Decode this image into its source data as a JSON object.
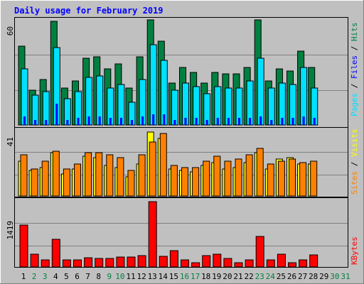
{
  "chart_data": [
    {
      "type": "bar",
      "title": "Daily usage for February 2019",
      "ylabel": "Pages / Files / Hits",
      "ylabel_parts": [
        "Pages",
        " / ",
        "Files",
        " / ",
        "Hits"
      ],
      "y_max_label": "60",
      "ylim": [
        0,
        60
      ],
      "categories": [
        "1",
        "2",
        "3",
        "4",
        "5",
        "6",
        "7",
        "8",
        "9",
        "10",
        "11",
        "12",
        "13",
        "14",
        "15",
        "16",
        "17",
        "18",
        "19",
        "20",
        "21",
        "22",
        "23",
        "24",
        "25",
        "26",
        "27",
        "28",
        "29",
        "30",
        "31"
      ],
      "weekend_days": [
        2,
        3,
        9,
        10,
        16,
        17,
        23,
        24,
        30,
        31
      ],
      "series": [
        {
          "name": "Hits",
          "color": "#008040",
          "values": [
            45,
            20,
            26,
            59,
            21,
            25,
            38,
            39,
            32,
            35,
            21,
            39,
            60,
            48,
            24,
            33,
            30,
            24,
            30,
            29,
            29,
            33,
            60,
            25,
            32,
            31,
            42,
            33,
            0,
            0,
            0
          ]
        },
        {
          "name": "Files",
          "color": "#00e0ff",
          "values": [
            32,
            17,
            19,
            44,
            15,
            19,
            27,
            28,
            21,
            23,
            13,
            26,
            46,
            37,
            20,
            24,
            22,
            18,
            22,
            21,
            21,
            25,
            38,
            21,
            24,
            23,
            33,
            21,
            0,
            0,
            0
          ]
        },
        {
          "name": "Pages",
          "color": "#0000ff",
          "values": [
            5,
            3,
            3,
            12,
            3,
            4,
            5,
            5,
            4,
            4,
            3,
            5,
            6,
            6,
            3,
            4,
            4,
            3,
            4,
            4,
            4,
            4,
            5,
            3,
            4,
            4,
            5,
            4,
            0,
            0,
            0
          ]
        }
      ]
    },
    {
      "type": "bar",
      "ylabel": "Sites / Visits",
      "ylabel_parts": [
        "Sites",
        " / ",
        "Visits"
      ],
      "y_max_label": "41",
      "ylim": [
        0,
        41
      ],
      "categories": [
        "1",
        "2",
        "3",
        "4",
        "5",
        "6",
        "7",
        "8",
        "9",
        "10",
        "11",
        "12",
        "13",
        "14",
        "15",
        "16",
        "17",
        "18",
        "19",
        "20",
        "21",
        "22",
        "23",
        "24",
        "25",
        "26",
        "27",
        "28",
        "29",
        "30",
        "31"
      ],
      "series": [
        {
          "name": "Visits",
          "color": "#ffff00",
          "values": [
            22,
            16,
            18,
            27,
            14,
            17,
            25,
            24,
            19,
            18,
            12,
            20,
            40,
            36,
            17,
            16,
            15,
            19,
            21,
            17,
            18,
            21,
            27,
            17,
            23,
            24,
            20,
            20,
            0,
            0,
            0
          ]
        },
        {
          "name": "Sites",
          "color": "#ff8000",
          "values": [
            26,
            17,
            22,
            28,
            17,
            20,
            27,
            27,
            26,
            24,
            16,
            26,
            34,
            39,
            19,
            18,
            18,
            22,
            25,
            22,
            23,
            26,
            30,
            20,
            22,
            23,
            21,
            22,
            0,
            0,
            0
          ]
        }
      ]
    },
    {
      "type": "bar",
      "ylabel": "KBytes",
      "ylabel_parts": [
        "KBytes"
      ],
      "y_max_label": "1419",
      "ylim": [
        0,
        1419
      ],
      "categories": [
        "1",
        "2",
        "3",
        "4",
        "5",
        "6",
        "7",
        "8",
        "9",
        "10",
        "11",
        "12",
        "13",
        "14",
        "15",
        "16",
        "17",
        "18",
        "19",
        "20",
        "21",
        "22",
        "23",
        "24",
        "25",
        "26",
        "27",
        "28",
        "29",
        "30",
        "31"
      ],
      "series": [
        {
          "name": "KBytes",
          "color": "#ff0000",
          "values": [
            910,
            270,
            160,
            600,
            150,
            160,
            200,
            190,
            190,
            210,
            210,
            240,
            1419,
            230,
            360,
            160,
            90,
            250,
            280,
            190,
            90,
            160,
            670,
            160,
            280,
            90,
            160,
            260,
            0,
            0,
            0
          ]
        }
      ]
    }
  ],
  "colors": {
    "background": "#c0c0c0",
    "plot_background": "#c0c0c0",
    "title": "#0000ff",
    "weekday_label": "#000000",
    "weekend_label": "#008040",
    "grid": "#808080",
    "hits": "#008040",
    "files": "#00e0ff",
    "pages": "#0000ff",
    "visits": "#ffff00",
    "sites": "#ff8000",
    "kbytes": "#ff0000"
  }
}
